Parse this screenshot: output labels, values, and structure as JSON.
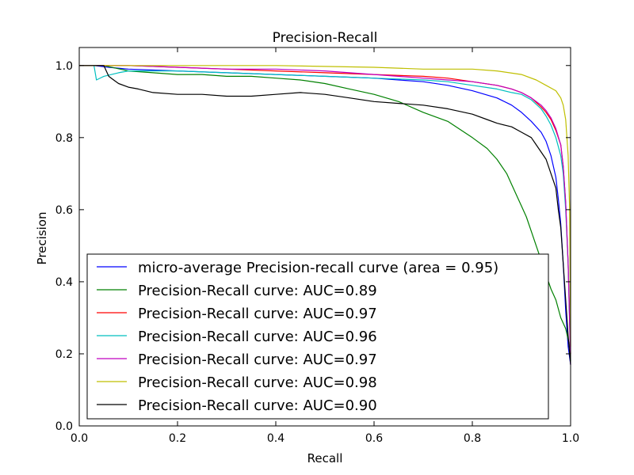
{
  "chart_data": {
    "type": "line",
    "title": "Precision-Recall",
    "xlabel": "Recall",
    "ylabel": "Precision",
    "xlim": [
      0,
      1
    ],
    "ylim": [
      0,
      1.05
    ],
    "xticks": [
      "0.0",
      "0.2",
      "0.4",
      "0.6",
      "0.8",
      "1.0"
    ],
    "yticks": [
      "0.0",
      "0.2",
      "0.4",
      "0.6",
      "0.8",
      "1.0"
    ],
    "grid": false,
    "legend_position": "lower-left",
    "series": [
      {
        "name": "micro-average Precision-recall curve (area = 0.95)",
        "color": "#0000ff",
        "points": [
          [
            0,
            1.0
          ],
          [
            0.03,
            1.0
          ],
          [
            0.06,
            0.995
          ],
          [
            0.1,
            0.99
          ],
          [
            0.2,
            0.985
          ],
          [
            0.3,
            0.98
          ],
          [
            0.4,
            0.975
          ],
          [
            0.5,
            0.97
          ],
          [
            0.6,
            0.965
          ],
          [
            0.65,
            0.96
          ],
          [
            0.7,
            0.955
          ],
          [
            0.75,
            0.945
          ],
          [
            0.8,
            0.93
          ],
          [
            0.85,
            0.91
          ],
          [
            0.88,
            0.89
          ],
          [
            0.9,
            0.87
          ],
          [
            0.92,
            0.845
          ],
          [
            0.94,
            0.815
          ],
          [
            0.95,
            0.79
          ],
          [
            0.96,
            0.75
          ],
          [
            0.97,
            0.69
          ],
          [
            0.975,
            0.63
          ],
          [
            0.98,
            0.56
          ],
          [
            0.985,
            0.45
          ],
          [
            0.99,
            0.32
          ],
          [
            0.995,
            0.22
          ],
          [
            1.0,
            0.17
          ]
        ]
      },
      {
        "name": "Precision-Recall curve: AUC=0.89",
        "color": "#008000",
        "points": [
          [
            0,
            1.0
          ],
          [
            0.05,
            1.0
          ],
          [
            0.1,
            0.985
          ],
          [
            0.15,
            0.98
          ],
          [
            0.2,
            0.975
          ],
          [
            0.25,
            0.975
          ],
          [
            0.3,
            0.97
          ],
          [
            0.35,
            0.97
          ],
          [
            0.4,
            0.965
          ],
          [
            0.45,
            0.96
          ],
          [
            0.5,
            0.95
          ],
          [
            0.55,
            0.935
          ],
          [
            0.6,
            0.92
          ],
          [
            0.65,
            0.9
          ],
          [
            0.7,
            0.87
          ],
          [
            0.75,
            0.845
          ],
          [
            0.8,
            0.8
          ],
          [
            0.83,
            0.77
          ],
          [
            0.85,
            0.74
          ],
          [
            0.87,
            0.7
          ],
          [
            0.88,
            0.67
          ],
          [
            0.89,
            0.64
          ],
          [
            0.9,
            0.61
          ],
          [
            0.91,
            0.58
          ],
          [
            0.92,
            0.54
          ],
          [
            0.93,
            0.5
          ],
          [
            0.94,
            0.46
          ],
          [
            0.95,
            0.42
          ],
          [
            0.96,
            0.38
          ],
          [
            0.97,
            0.35
          ],
          [
            0.98,
            0.3
          ],
          [
            0.99,
            0.27
          ],
          [
            1.0,
            0.21
          ]
        ]
      },
      {
        "name": "Precision-Recall curve: AUC=0.97",
        "color": "#ff0000",
        "points": [
          [
            0,
            1.0
          ],
          [
            0.1,
            1.0
          ],
          [
            0.2,
            0.995
          ],
          [
            0.3,
            0.99
          ],
          [
            0.4,
            0.985
          ],
          [
            0.5,
            0.98
          ],
          [
            0.6,
            0.975
          ],
          [
            0.7,
            0.97
          ],
          [
            0.75,
            0.965
          ],
          [
            0.8,
            0.955
          ],
          [
            0.85,
            0.945
          ],
          [
            0.88,
            0.935
          ],
          [
            0.9,
            0.925
          ],
          [
            0.92,
            0.91
          ],
          [
            0.94,
            0.885
          ],
          [
            0.95,
            0.87
          ],
          [
            0.96,
            0.85
          ],
          [
            0.97,
            0.82
          ],
          [
            0.98,
            0.78
          ],
          [
            0.985,
            0.72
          ],
          [
            0.99,
            0.62
          ],
          [
            0.995,
            0.45
          ],
          [
            1.0,
            0.2
          ]
        ]
      },
      {
        "name": "Precision-Recall curve: AUC=0.96",
        "color": "#00bfbf",
        "points": [
          [
            0,
            1.0
          ],
          [
            0.03,
            1.0
          ],
          [
            0.035,
            0.96
          ],
          [
            0.05,
            0.97
          ],
          [
            0.08,
            0.98
          ],
          [
            0.1,
            0.985
          ],
          [
            0.2,
            0.985
          ],
          [
            0.3,
            0.98
          ],
          [
            0.4,
            0.975
          ],
          [
            0.5,
            0.97
          ],
          [
            0.6,
            0.965
          ],
          [
            0.7,
            0.96
          ],
          [
            0.75,
            0.955
          ],
          [
            0.8,
            0.945
          ],
          [
            0.85,
            0.935
          ],
          [
            0.88,
            0.925
          ],
          [
            0.9,
            0.92
          ],
          [
            0.92,
            0.905
          ],
          [
            0.94,
            0.88
          ],
          [
            0.95,
            0.86
          ],
          [
            0.96,
            0.835
          ],
          [
            0.97,
            0.8
          ],
          [
            0.98,
            0.75
          ],
          [
            0.985,
            0.7
          ],
          [
            0.99,
            0.6
          ],
          [
            0.995,
            0.45
          ],
          [
            1.0,
            0.18
          ]
        ]
      },
      {
        "name": "Precision-Recall curve: AUC=0.97",
        "color": "#bf00bf",
        "points": [
          [
            0,
            1.0
          ],
          [
            0.1,
            1.0
          ],
          [
            0.2,
            0.995
          ],
          [
            0.3,
            0.99
          ],
          [
            0.4,
            0.99
          ],
          [
            0.5,
            0.985
          ],
          [
            0.6,
            0.975
          ],
          [
            0.7,
            0.965
          ],
          [
            0.75,
            0.96
          ],
          [
            0.8,
            0.955
          ],
          [
            0.85,
            0.945
          ],
          [
            0.88,
            0.935
          ],
          [
            0.9,
            0.925
          ],
          [
            0.92,
            0.91
          ],
          [
            0.94,
            0.89
          ],
          [
            0.95,
            0.875
          ],
          [
            0.96,
            0.855
          ],
          [
            0.97,
            0.825
          ],
          [
            0.98,
            0.78
          ],
          [
            0.985,
            0.72
          ],
          [
            0.99,
            0.62
          ],
          [
            0.995,
            0.45
          ],
          [
            1.0,
            0.17
          ]
        ]
      },
      {
        "name": "Precision-Recall curve: AUC=0.98",
        "color": "#bfbf00",
        "points": [
          [
            0,
            1.0
          ],
          [
            0.2,
            1.0
          ],
          [
            0.4,
            1.0
          ],
          [
            0.6,
            0.995
          ],
          [
            0.7,
            0.99
          ],
          [
            0.8,
            0.99
          ],
          [
            0.85,
            0.985
          ],
          [
            0.9,
            0.975
          ],
          [
            0.93,
            0.96
          ],
          [
            0.95,
            0.945
          ],
          [
            0.97,
            0.93
          ],
          [
            0.98,
            0.91
          ],
          [
            0.985,
            0.89
          ],
          [
            0.99,
            0.85
          ],
          [
            0.995,
            0.75
          ],
          [
            0.998,
            0.6
          ],
          [
            1.0,
            0.22
          ]
        ]
      },
      {
        "name": "Precision-Recall curve: AUC=0.90",
        "color": "#000000",
        "points": [
          [
            0,
            1.0
          ],
          [
            0.05,
            1.0
          ],
          [
            0.06,
            0.97
          ],
          [
            0.07,
            0.96
          ],
          [
            0.08,
            0.95
          ],
          [
            0.1,
            0.94
          ],
          [
            0.12,
            0.935
          ],
          [
            0.15,
            0.925
          ],
          [
            0.2,
            0.92
          ],
          [
            0.25,
            0.92
          ],
          [
            0.3,
            0.915
          ],
          [
            0.35,
            0.915
          ],
          [
            0.4,
            0.92
          ],
          [
            0.45,
            0.925
          ],
          [
            0.5,
            0.92
          ],
          [
            0.55,
            0.91
          ],
          [
            0.6,
            0.9
          ],
          [
            0.65,
            0.895
          ],
          [
            0.7,
            0.89
          ],
          [
            0.75,
            0.88
          ],
          [
            0.8,
            0.865
          ],
          [
            0.83,
            0.85
          ],
          [
            0.85,
            0.84
          ],
          [
            0.88,
            0.83
          ],
          [
            0.9,
            0.815
          ],
          [
            0.92,
            0.8
          ],
          [
            0.93,
            0.78
          ],
          [
            0.94,
            0.76
          ],
          [
            0.95,
            0.74
          ],
          [
            0.96,
            0.7
          ],
          [
            0.97,
            0.66
          ],
          [
            0.975,
            0.6
          ],
          [
            0.98,
            0.55
          ],
          [
            0.985,
            0.45
          ],
          [
            0.99,
            0.35
          ],
          [
            0.995,
            0.25
          ],
          [
            1.0,
            0.17
          ]
        ]
      }
    ]
  }
}
